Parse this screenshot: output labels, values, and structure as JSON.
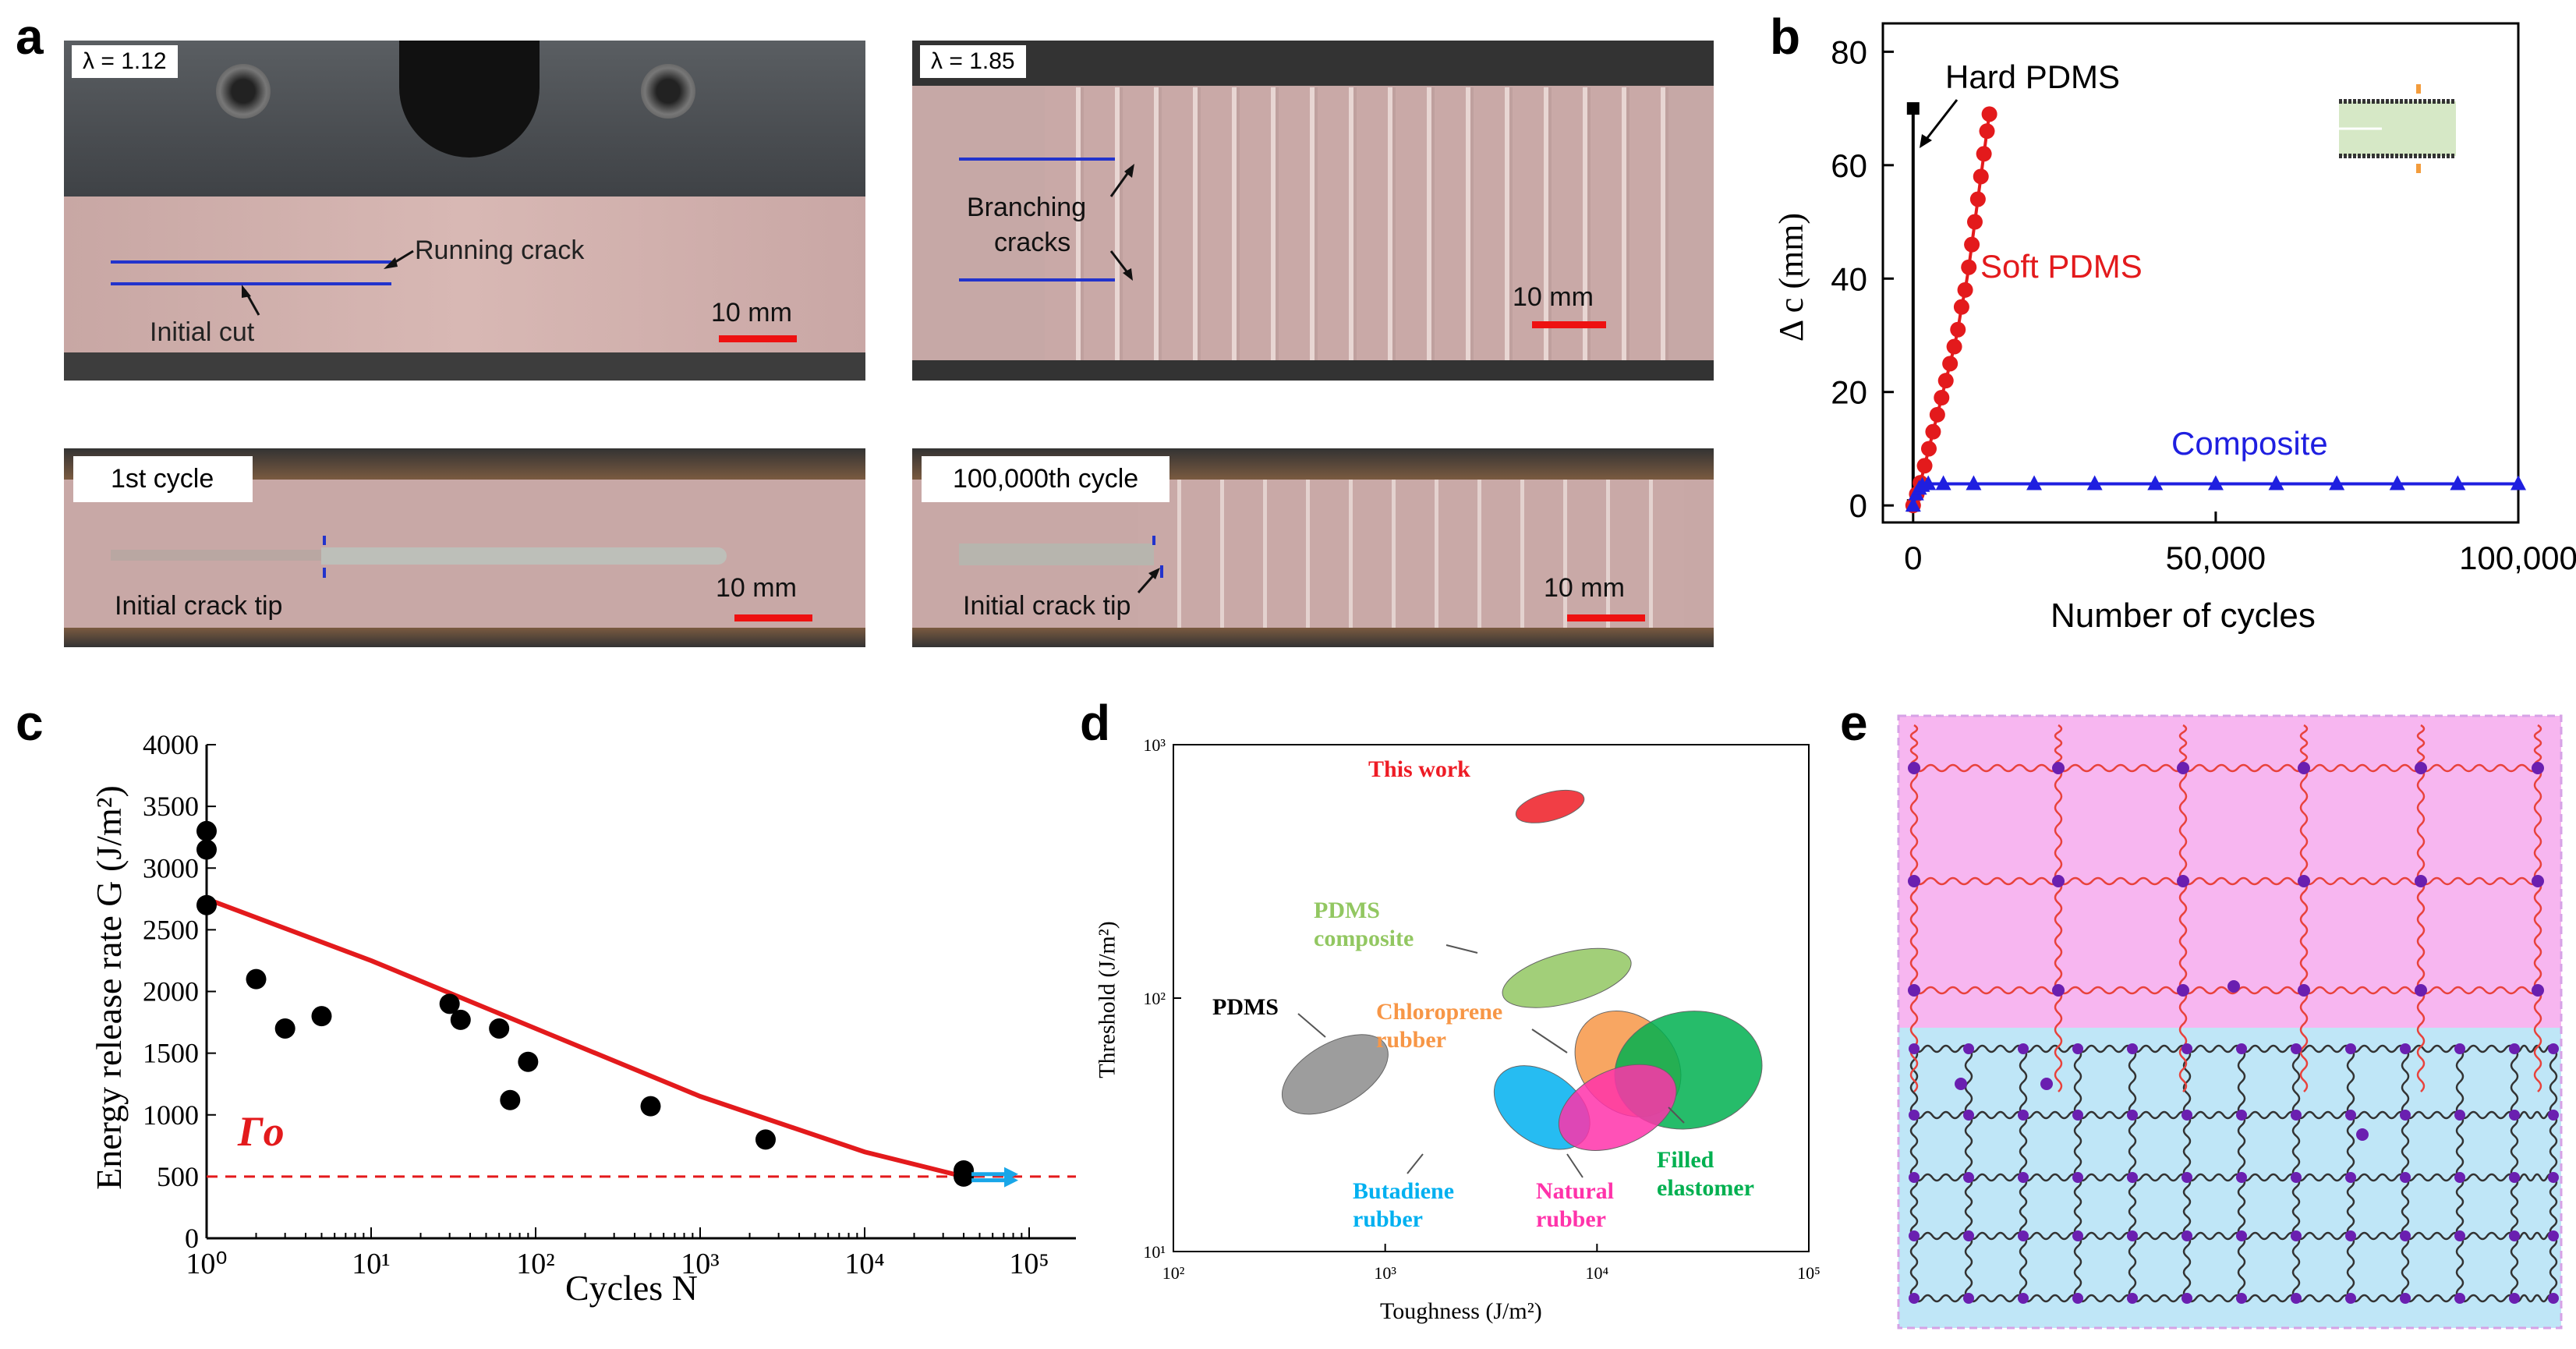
{
  "panels": {
    "a": "a",
    "b": "b",
    "c": "c",
    "d": "d",
    "e": "e"
  },
  "panel_a": {
    "photo1": {
      "lambda": "λ = 1.12",
      "running": "Running crack",
      "initial": "Initial cut",
      "scale": "10 mm"
    },
    "photo2": {
      "lambda": "λ  = 1.85",
      "branching1": "Branching",
      "branching2": "cracks",
      "scale": "10 mm"
    },
    "photo3": {
      "cycle": "1st cycle",
      "tip": "Initial crack tip",
      "scale": "10 mm"
    },
    "photo4": {
      "cycle": "100,000th cycle",
      "tip": "Initial crack tip",
      "scale": "10 mm"
    }
  },
  "chart_data": [
    {
      "id": "b",
      "type": "line",
      "xlabel": "Number of cycles",
      "ylabel": "Δ c (mm)",
      "xlim": [
        -5000,
        100000
      ],
      "ylim": [
        -3,
        85
      ],
      "xticks": [
        0,
        50000,
        100000
      ],
      "xtick_labels": [
        "0",
        "50,000",
        "100,000"
      ],
      "yticks": [
        0,
        20,
        40,
        60,
        80
      ],
      "ytick_labels": [
        "0",
        "20",
        "40",
        "60",
        "80"
      ],
      "series": [
        {
          "name": "Hard PDMS",
          "color": "#000000",
          "marker": "square",
          "points": [
            [
              0,
              0
            ],
            [
              0,
              70
            ]
          ]
        },
        {
          "name": "Soft PDMS",
          "color": "#e31a1c",
          "marker": "circle",
          "points": [
            [
              0,
              0
            ],
            [
              600,
              2
            ],
            [
              1200,
              4
            ],
            [
              1900,
              7
            ],
            [
              2600,
              10
            ],
            [
              3300,
              13
            ],
            [
              4000,
              16
            ],
            [
              4700,
              19
            ],
            [
              5400,
              22
            ],
            [
              6100,
              25
            ],
            [
              6800,
              28
            ],
            [
              7400,
              31
            ],
            [
              8000,
              35
            ],
            [
              8600,
              38
            ],
            [
              9200,
              42
            ],
            [
              9700,
              46
            ],
            [
              10200,
              50
            ],
            [
              10700,
              54
            ],
            [
              11200,
              58
            ],
            [
              11700,
              62
            ],
            [
              12200,
              66
            ],
            [
              12600,
              69
            ]
          ]
        },
        {
          "name": "Composite",
          "color": "#1f1fe0",
          "marker": "triangle",
          "points": [
            [
              0,
              0
            ],
            [
              500,
              2
            ],
            [
              1000,
              3
            ],
            [
              1500,
              3.5
            ],
            [
              2500,
              3.8
            ],
            [
              5000,
              3.8
            ],
            [
              10000,
              3.8
            ],
            [
              20000,
              3.8
            ],
            [
              30000,
              3.8
            ],
            [
              40000,
              3.8
            ],
            [
              50000,
              3.8
            ],
            [
              60000,
              3.8
            ],
            [
              70000,
              3.8
            ],
            [
              80000,
              3.8
            ],
            [
              90000,
              3.8
            ],
            [
              100000,
              3.8
            ]
          ]
        }
      ]
    },
    {
      "id": "c",
      "type": "scatter",
      "xlabel": "Cycles N",
      "ylabel": "Energy release rate G (J/m²)",
      "xscale": "log",
      "xlim": [
        1,
        100000
      ],
      "ylim": [
        0,
        4000
      ],
      "xtick_labels": [
        "10⁰",
        "10¹",
        "10²",
        "10³",
        "10⁴",
        "10⁵"
      ],
      "yticks": [
        0,
        500,
        1000,
        1500,
        2000,
        2500,
        3000,
        3500,
        4000
      ],
      "ytick_labels": [
        "0",
        "500",
        "1000",
        "1500",
        "2000",
        "2500",
        "3000",
        "3500",
        "4000"
      ],
      "points": [
        [
          1,
          3300
        ],
        [
          1,
          3150
        ],
        [
          1,
          2700
        ],
        [
          2,
          2100
        ],
        [
          3,
          1700
        ],
        [
          5,
          1800
        ],
        [
          30,
          1900
        ],
        [
          35,
          1770
        ],
        [
          60,
          1700
        ],
        [
          70,
          1120
        ],
        [
          90,
          1430
        ],
        [
          500,
          1070
        ],
        [
          2500,
          800
        ],
        [
          40000,
          550
        ],
        [
          40000,
          500
        ]
      ],
      "fit": {
        "color": "#e31a1c",
        "points": [
          [
            1,
            2750
          ],
          [
            10,
            2250
          ],
          [
            100,
            1700
          ],
          [
            1000,
            1150
          ],
          [
            10000,
            700
          ],
          [
            40000,
            500
          ]
        ]
      },
      "threshold": {
        "value": 500,
        "label": "Γo",
        "color": "#e31a1c"
      }
    },
    {
      "id": "d",
      "type": "scatter",
      "xlabel": "Toughness (J/m²)",
      "ylabel": "Threshold (J/m²)",
      "xscale": "log",
      "yscale": "log",
      "xlim": [
        100,
        100000
      ],
      "ylim": [
        10,
        1000
      ],
      "xtick_labels": [
        "10²",
        "10³",
        "10⁴",
        "10⁵"
      ],
      "ytick_labels": [
        "10¹",
        "10²",
        "10³"
      ],
      "regions": [
        {
          "name": "This work",
          "color": "#ee1c25",
          "toughness": 6000,
          "threshold": 570
        },
        {
          "name": "PDMS composite",
          "color": "#92c761",
          "toughness": 7200,
          "threshold": 120
        },
        {
          "name": "PDMS",
          "color": "#8c8c8c",
          "toughness": 580,
          "threshold": 50
        },
        {
          "name": "Chloroprene rubber",
          "color": "#f79646",
          "toughness": 14000,
          "threshold": 55
        },
        {
          "name": "Filled elastomer",
          "color": "#00b050",
          "toughness": 27000,
          "threshold": 52
        },
        {
          "name": "Butadiene rubber",
          "color": "#00b0f0",
          "toughness": 5500,
          "threshold": 37
        },
        {
          "name": "Natural rubber",
          "color": "#ff33aa",
          "toughness": 12500,
          "threshold": 37
        }
      ]
    }
  ]
}
